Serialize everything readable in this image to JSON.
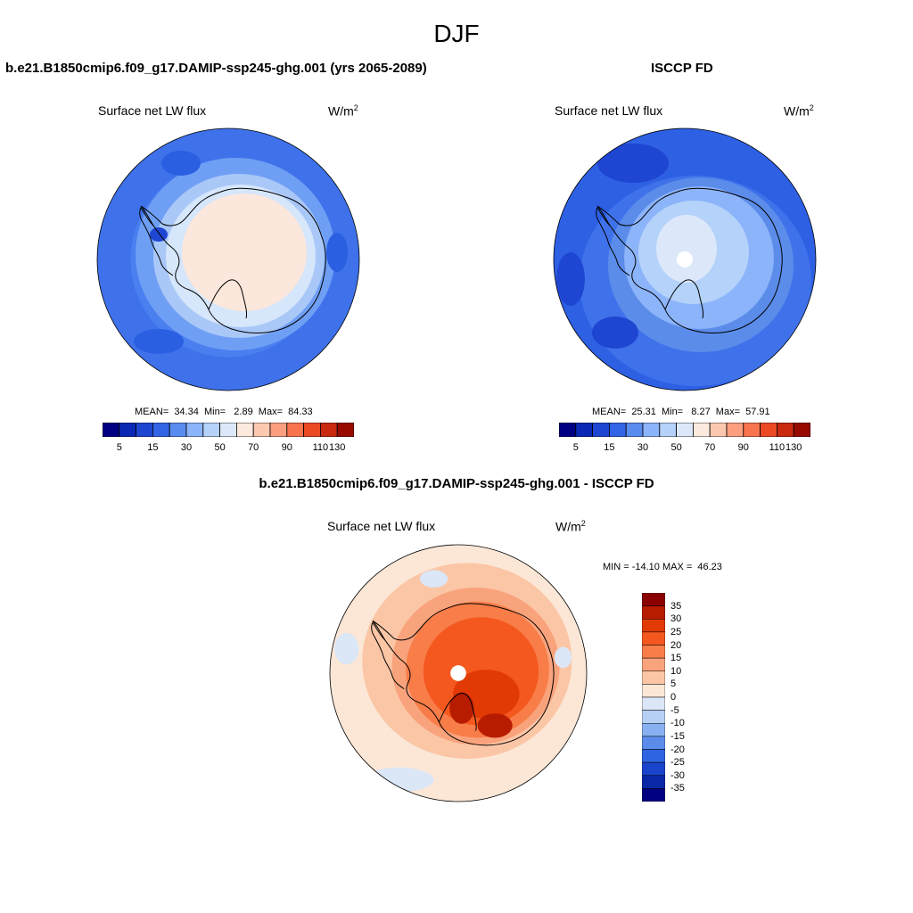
{
  "figure": {
    "title": "DJF",
    "variable": "Surface net LW flux",
    "units_base": "W/m",
    "units_exp": "2",
    "land_color": "#000000",
    "ocean_color": "#ffffff"
  },
  "panels": [
    {
      "id": "model",
      "title": "b.e21.B1850cmip6.f09_g17.DAMIP-ssp245-ghg.001 (yrs 2065-2089)",
      "stats": "MEAN=  34.34  Min=   2.89  Max=  84.33",
      "scheme": "model"
    },
    {
      "id": "obs",
      "title": "ISCCP FD",
      "stats": "MEAN=  25.31  Min=   8.27  Max=  57.91",
      "scheme": "obs"
    }
  ],
  "colorbar_top": {
    "colors": [
      "#000080",
      "#0a28b4",
      "#1e46d2",
      "#3264e6",
      "#5a8cf0",
      "#8cb4fa",
      "#b4d2fa",
      "#dce8fa",
      "#fdeadf",
      "#fcc9b0",
      "#fc9f80",
      "#f8744e",
      "#eb4a24",
      "#c8290f",
      "#960a00"
    ],
    "labels": [
      "5",
      "15",
      "30",
      "50",
      "70",
      "90",
      "110",
      "130"
    ]
  },
  "difference": {
    "title": "b.e21.B1850cmip6.f09_g17.DAMIP-ssp245-ghg.001 - ISCCP FD",
    "stats": "MIN = -14.10 MAX =  46.23",
    "colorbar": {
      "colors": [
        "#8b0000",
        "#b81c00",
        "#e23a05",
        "#f4581e",
        "#f87d48",
        "#f9a37c",
        "#fbc6a6",
        "#fce7d6",
        "#dbe6f6",
        "#b6cff5",
        "#89b1f1",
        "#5b8cea",
        "#2e64e0",
        "#1a44cc",
        "#0a28a6",
        "#000080"
      ],
      "labels": [
        "35",
        "30",
        "25",
        "20",
        "15",
        "10",
        "5",
        "0",
        "-5",
        "-10",
        "-15",
        "-20",
        "-25",
        "-30",
        "-35"
      ]
    }
  }
}
